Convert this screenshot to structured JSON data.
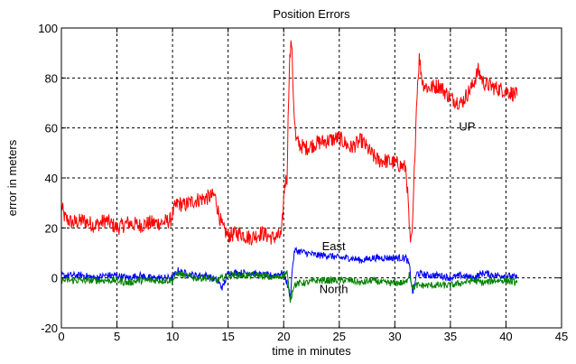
{
  "chart_data": {
    "type": "line",
    "title": "Position Errors",
    "xlabel": "time in minutes",
    "ylabel": "error in meters",
    "xlim": [
      0,
      45
    ],
    "ylim": [
      -20,
      100
    ],
    "xticks": [
      0,
      5,
      10,
      15,
      20,
      25,
      30,
      35,
      40,
      45
    ],
    "yticks": [
      -20,
      0,
      20,
      40,
      60,
      80,
      100
    ],
    "grid": true,
    "grid_style": "dashed",
    "annotations": [
      {
        "text": "UP",
        "x": 36.5,
        "y": 59
      },
      {
        "text": "East",
        "x": 24.5,
        "y": 11
      },
      {
        "text": "North",
        "x": 24.5,
        "y": -6
      }
    ],
    "series": [
      {
        "name": "UP",
        "color": "#ff0000",
        "x": [
          0,
          0.3,
          1,
          2,
          3,
          4,
          5,
          6,
          7,
          8,
          9,
          9.8,
          10.2,
          10.5,
          11,
          12,
          13,
          13.8,
          14.2,
          14.5,
          15,
          16,
          17,
          18,
          19,
          19.8,
          20.1,
          20.3,
          20.5,
          20.7,
          20.9,
          21.1,
          21.5,
          22,
          23,
          24,
          25,
          26,
          27,
          28,
          28.5,
          29,
          30,
          30.5,
          31,
          31.2,
          31.4,
          31.6,
          31.8,
          32,
          32.2,
          32.5,
          33,
          34,
          35,
          36,
          37,
          37.5,
          38,
          39,
          40,
          41
        ],
        "y": [
          29,
          24,
          22,
          23,
          21,
          23,
          20,
          22,
          21,
          22,
          22,
          23,
          28,
          30,
          29,
          31,
          32,
          33,
          25,
          20,
          17,
          18,
          16,
          18,
          16,
          17,
          38,
          40,
          85,
          95,
          70,
          55,
          53,
          52,
          54,
          55,
          56,
          52,
          55,
          49,
          47,
          47,
          46,
          45,
          44,
          30,
          12,
          20,
          50,
          75,
          88,
          78,
          76,
          77,
          72,
          70,
          77,
          83,
          78,
          76,
          75,
          73
        ]
      },
      {
        "name": "East",
        "color": "#0000ff",
        "x": [
          0,
          1,
          2,
          3,
          4,
          5,
          6,
          7,
          8,
          9,
          10,
          10.5,
          11,
          12,
          13,
          14,
          14.5,
          15,
          16,
          17,
          18,
          19,
          20,
          20.3,
          20.6,
          20.8,
          21,
          22,
          23,
          24,
          25,
          26,
          27,
          28,
          29,
          30,
          31,
          31.3,
          31.6,
          32,
          33,
          34,
          35,
          36,
          37,
          38,
          39,
          40,
          41
        ],
        "y": [
          1,
          1,
          1,
          0,
          1,
          1,
          0,
          1,
          0,
          0,
          0,
          3,
          2,
          1,
          1,
          -1,
          -4,
          2,
          2,
          2,
          1,
          1,
          2,
          -2,
          -8,
          5,
          11,
          10,
          9,
          9,
          8,
          8,
          7,
          8,
          8,
          8,
          8,
          5,
          -6,
          2,
          1,
          1,
          0,
          1,
          0,
          2,
          1,
          1,
          0
        ]
      },
      {
        "name": "North",
        "color": "#008000",
        "x": [
          0,
          1,
          2,
          3,
          4,
          5,
          6,
          7,
          8,
          9,
          10,
          10.5,
          11,
          12,
          13,
          14,
          15,
          16,
          17,
          18,
          19,
          20,
          20.3,
          20.6,
          20.9,
          21.5,
          22,
          23,
          24,
          25,
          26,
          27,
          28,
          29,
          30,
          31,
          31.3,
          31.6,
          32,
          33,
          34,
          35,
          36,
          37,
          38,
          39,
          40,
          41
        ],
        "y": [
          -1,
          -1,
          -1,
          -1,
          -1,
          -1,
          -2,
          -1,
          -1,
          -1,
          -1,
          2,
          1,
          0,
          0,
          -1,
          1,
          1,
          1,
          1,
          0,
          1,
          2,
          -9,
          -3,
          -2,
          -2,
          -1,
          -1,
          -1,
          -1,
          -2,
          -1,
          -2,
          -2,
          -2,
          2,
          -4,
          -3,
          -3,
          -3,
          -3,
          -2,
          -1,
          -2,
          -1,
          -1,
          -2
        ]
      }
    ]
  }
}
